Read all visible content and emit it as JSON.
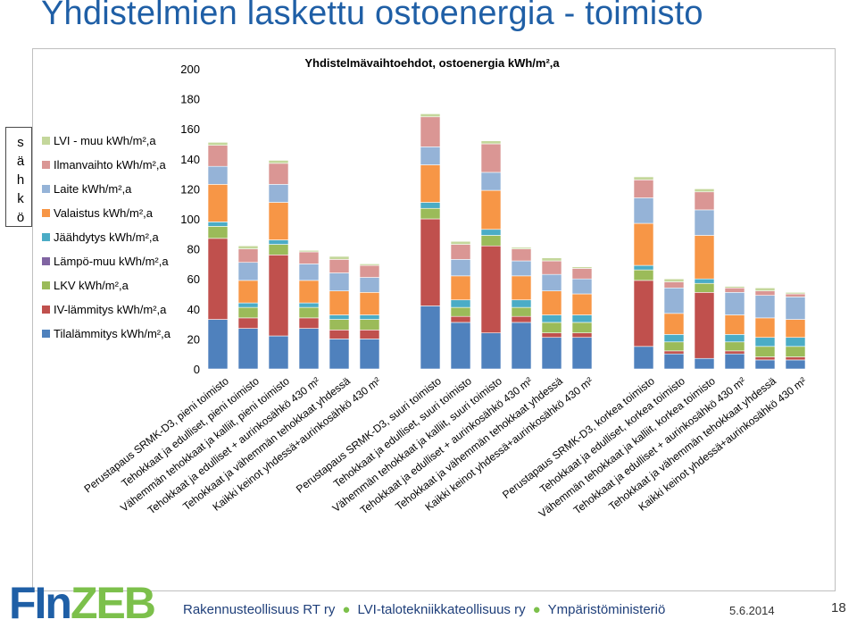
{
  "slide": {
    "title": "Yhdistelmien laskettu ostoenergia - toimisto",
    "legend_vertical_label": [
      "s",
      "ä",
      "h",
      "k",
      "ö"
    ],
    "logo_fi": "FIn",
    "logo_zeb": "ZEB",
    "footer_orgs": [
      "Rakennusteollisuus RT ry",
      "LVI-talotekniikkateollisuus ry",
      "Ympäristöministeriö"
    ],
    "footer_date": "5.6.2014",
    "page_number": "18"
  },
  "chart_data": {
    "type": "bar",
    "stacked": true,
    "title": "Yhdistelmävaihtoehdot, ostoenergia kWh/m²,a",
    "xlabel": "",
    "ylabel": "",
    "ylim": [
      0,
      200
    ],
    "yticks": [
      0,
      20,
      40,
      60,
      80,
      100,
      120,
      140,
      160,
      180,
      200
    ],
    "grid": false,
    "legend_position": "left",
    "groups": [
      [
        "Perustapaus SRMK-D3, pieni toimisto",
        "Tehokkaat ja edulliset, pieni toimisto",
        "Vähemmän tehokkaat ja kalliit, pieni toimisto",
        "Tehokkaat ja edulliset + aurinkosähkö 430 m²",
        "Tehokkaat ja vähemmän tehokkaat yhdessä",
        "Kaikki keinot yhdessä+aurinkosähkö 430 m²"
      ],
      [
        "Perustapaus SRMK-D3, suuri toimisto",
        "Tehokkaat ja edulliset, suuri toimisto",
        "Vähemmän tehokkaat ja kalliit, suuri toimisto",
        "Tehokkaat ja edulliset + aurinkosähkö 430 m²",
        "Tehokkaat ja vähemmän tehokkaat yhdessä",
        "Kaikki keinot yhdessä+aurinkosähkö 430 m²"
      ],
      [
        "Perustapaus SRMK-D3, korkea toimisto",
        "Tehokkaat ja edulliset, korkea toimisto",
        "Vähemmän tehokkaat ja kalliit, korkea toimisto",
        "Tehokkaat ja edulliset + aurinkosähkö 430 m²",
        "Tehokkaat ja vähemmän tehokkaat yhdessä",
        "Kaikki keinot yhdessä+aurinkosähkö 430 m²"
      ]
    ],
    "series_order_bottom_to_top": [
      "Tilalämmitys kWh/m²,a",
      "IV-lämmitys kWh/m²,a",
      "LKV kWh/m²,a",
      "Lämpö-muu kWh/m²,a",
      "Jäähdytys kWh/m²,a",
      "Valaistus kWh/m²,a",
      "Laite kWh/m²,a",
      "Ilmanvaihto kWh/m²,a",
      "LVI - muu kWh/m²,a"
    ],
    "legend_order_top_to_bottom": [
      "LVI - muu kWh/m²,a",
      "Ilmanvaihto kWh/m²,a",
      "Laite kWh/m²,a",
      "Valaistus kWh/m²,a",
      "Jäähdytys kWh/m²,a",
      "Lämpö-muu kWh/m²,a",
      "LKV kWh/m²,a",
      "IV-lämmitys kWh/m²,a",
      "Tilalämmitys kWh/m²,a"
    ],
    "series": [
      {
        "name": "Tilalämmitys kWh/m²,a",
        "color": "#4f81bd",
        "values": [
          33,
          27,
          22,
          27,
          20,
          20,
          42,
          31,
          24,
          31,
          21,
          21,
          15,
          10,
          7,
          10,
          6,
          6
        ]
      },
      {
        "name": "IV-lämmitys kWh/m²,a",
        "color": "#c0504d",
        "values": [
          54,
          7,
          54,
          7,
          6,
          6,
          58,
          4,
          58,
          4,
          3,
          3,
          44,
          2,
          44,
          2,
          2,
          2
        ]
      },
      {
        "name": "LKV kWh/m²,a",
        "color": "#9bbb59",
        "values": [
          8,
          7,
          7,
          7,
          7,
          7,
          7,
          6,
          7,
          6,
          7,
          7,
          7,
          6,
          6,
          6,
          7,
          7
        ]
      },
      {
        "name": "Lämpö-muu kWh/m²,a",
        "color": "#8064a2",
        "values": [
          0,
          0,
          0,
          0,
          0,
          0,
          0,
          0,
          0,
          0,
          0,
          0,
          0,
          0,
          0,
          0,
          0,
          0
        ]
      },
      {
        "name": "Jäähdytys kWh/m²,a",
        "color": "#4bacc6",
        "values": [
          3,
          3,
          3,
          3,
          3,
          3,
          4,
          5,
          4,
          5,
          5,
          5,
          3,
          5,
          3,
          5,
          6,
          6
        ]
      },
      {
        "name": "Valaistus kWh/m²,a",
        "color": "#f79646",
        "values": [
          25,
          15,
          25,
          15,
          16,
          15,
          25,
          16,
          26,
          16,
          16,
          14,
          28,
          14,
          29,
          13,
          13,
          12
        ]
      },
      {
        "name": "Laite kWh/m²,a",
        "color": "#95b3d7",
        "values": [
          12,
          12,
          12,
          11,
          12,
          10,
          12,
          11,
          12,
          10,
          11,
          10,
          17,
          17,
          17,
          15,
          15,
          15
        ]
      },
      {
        "name": "Ilmanvaihto kWh/m²,a",
        "color": "#da9694",
        "values": [
          14,
          9,
          14,
          8,
          9,
          8,
          20,
          10,
          19,
          8,
          9,
          7,
          12,
          4,
          12,
          3,
          3,
          2
        ]
      },
      {
        "name": "LVI - muu kWh/m²,a",
        "color": "#c4d79b",
        "values": [
          2,
          2,
          2,
          1,
          2,
          1,
          2,
          2,
          2,
          1,
          2,
          1,
          2,
          2,
          2,
          1,
          2,
          1
        ]
      }
    ]
  }
}
